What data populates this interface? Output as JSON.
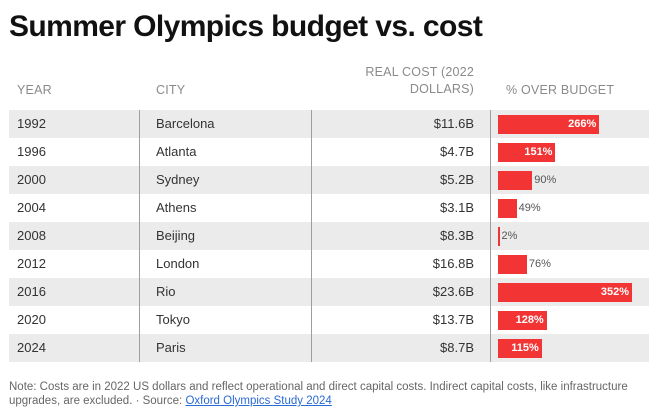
{
  "title": "Summer Olympics budget vs. cost",
  "headers": {
    "year": "YEAR",
    "city": "CITY",
    "cost": "REAL COST (2022 DOLLARS)",
    "pct": "% OVER BUDGET"
  },
  "colors": {
    "bar": "#f23434",
    "stripe": "#ebebeb"
  },
  "chart_data": {
    "type": "table",
    "title": "Summer Olympics budget vs. cost",
    "columns": [
      "YEAR",
      "CITY",
      "REAL COST (2022 DOLLARS)",
      "% OVER BUDGET"
    ],
    "rows": [
      {
        "year": "1992",
        "city": "Barcelona",
        "cost": "$11.6B",
        "pct": 266
      },
      {
        "year": "1996",
        "city": "Atlanta",
        "cost": "$4.7B",
        "pct": 151
      },
      {
        "year": "2000",
        "city": "Sydney",
        "cost": "$5.2B",
        "pct": 90
      },
      {
        "year": "2004",
        "city": "Athens",
        "cost": "$3.1B",
        "pct": 49
      },
      {
        "year": "2008",
        "city": "Beijing",
        "cost": "$8.3B",
        "pct": 2
      },
      {
        "year": "2012",
        "city": "London",
        "cost": "$16.8B",
        "pct": 76
      },
      {
        "year": "2016",
        "city": "Rio",
        "cost": "$23.6B",
        "pct": 352
      },
      {
        "year": "2020",
        "city": "Tokyo",
        "cost": "$13.7B",
        "pct": 128
      },
      {
        "year": "2024",
        "city": "Paris",
        "cost": "$8.7B",
        "pct": 115
      }
    ],
    "pct_max": 352
  },
  "note": {
    "text": "Note: Costs are in 2022 US dollars and reflect operational and direct capital costs. Indirect capital costs, like infrastructure upgrades, are excluded.  · Source: ",
    "source_link": "Oxford Olympics Study 2024"
  }
}
